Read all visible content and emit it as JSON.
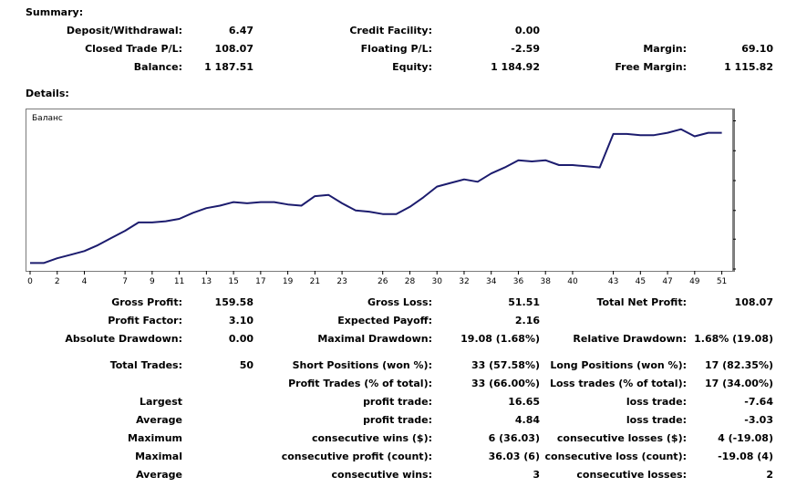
{
  "summary": {
    "heading": "Summary:",
    "deposit_withdrawal": {
      "label": "Deposit/Withdrawal:",
      "value": "6.47"
    },
    "credit_facility": {
      "label": "Credit Facility:",
      "value": "0.00"
    },
    "closed_trade_pl": {
      "label": "Closed Trade P/L:",
      "value": "108.07"
    },
    "floating_pl": {
      "label": "Floating P/L:",
      "value": "-2.59"
    },
    "margin": {
      "label": "Margin:",
      "value": "69.10"
    },
    "balance": {
      "label": "Balance:",
      "value": "1 187.51"
    },
    "equity": {
      "label": "Equity:",
      "value": "1 184.92"
    },
    "free_margin": {
      "label": "Free Margin:",
      "value": "1 115.82"
    }
  },
  "details": {
    "heading": "Details:"
  },
  "chart_data": {
    "type": "line",
    "title": "Баланс",
    "series": [
      {
        "name": "",
        "color": "#1c1c6e",
        "x": [
          0,
          1,
          2,
          3,
          4,
          5,
          6,
          7,
          8,
          9,
          10,
          11,
          12,
          13,
          14,
          15,
          16,
          17,
          18,
          19,
          20,
          21,
          22,
          23,
          24,
          25,
          26,
          27,
          28,
          29,
          30,
          31,
          32,
          33,
          34,
          35,
          36,
          37,
          38,
          39,
          40,
          41,
          42,
          43,
          44,
          45,
          46,
          47,
          48,
          49,
          50,
          51
        ],
        "values": [
          1072,
          1072,
          1076,
          1079,
          1082,
          1087,
          1093,
          1099,
          1106,
          1106,
          1107,
          1109,
          1114,
          1118,
          1120,
          1123,
          1122,
          1123,
          1123,
          1121,
          1120,
          1128,
          1129,
          1122,
          1116,
          1115,
          1113,
          1113,
          1119,
          1127,
          1136,
          1139,
          1142,
          1140,
          1147,
          1152,
          1158,
          1157,
          1158,
          1154,
          1154,
          1153,
          1152,
          1180,
          1180,
          1179,
          1179,
          1181,
          1184,
          1178,
          1181,
          1181
        ]
      }
    ],
    "x_ticks": [
      "0",
      "2",
      "4",
      "7",
      "9",
      "11",
      "13",
      "15",
      "17",
      "19",
      "21",
      "23",
      "26",
      "28",
      "30",
      "32",
      "34",
      "36",
      "38",
      "40",
      "43",
      "45",
      "47",
      "49",
      "51"
    ],
    "y_ticks": [
      "1067",
      "1092",
      "1116",
      "1141",
      "1166",
      "1191"
    ],
    "ylim": [
      1067,
      1199
    ],
    "xlim": [
      0,
      51.5
    ],
    "grid": false,
    "y_axis_position": "right"
  },
  "stats": {
    "gross_profit": {
      "label": "Gross Profit:",
      "value": "159.58"
    },
    "gross_loss": {
      "label": "Gross Loss:",
      "value": "51.51"
    },
    "total_net_profit": {
      "label": "Total Net Profit:",
      "value": "108.07"
    },
    "profit_factor": {
      "label": "Profit Factor:",
      "value": "3.10"
    },
    "expected_payoff": {
      "label": "Expected Payoff:",
      "value": "2.16"
    },
    "absolute_drawdown": {
      "label": "Absolute Drawdown:",
      "value": "0.00"
    },
    "maximal_drawdown": {
      "label": "Maximal Drawdown:",
      "value": "19.08 (1.68%)"
    },
    "relative_drawdown": {
      "label": "Relative Drawdown:",
      "value": "1.68% (19.08)"
    },
    "total_trades": {
      "label": "Total Trades:",
      "value": "50"
    },
    "short_positions": {
      "label": "Short Positions (won %):",
      "value": "33 (57.58%)"
    },
    "long_positions": {
      "label": "Long Positions (won %):",
      "value": "17 (82.35%)"
    },
    "profit_trades": {
      "label": "Profit Trades (% of total):",
      "value": "33 (66.00%)"
    },
    "loss_trades": {
      "label": "Loss trades (% of total):",
      "value": "17 (34.00%)"
    },
    "largest": {
      "label": "Largest",
      "profit_label": "profit trade:",
      "profit_value": "16.65",
      "loss_label": "loss trade:",
      "loss_value": "-7.64"
    },
    "average": {
      "label": "Average",
      "profit_label": "profit trade:",
      "profit_value": "4.84",
      "loss_label": "loss trade:",
      "loss_value": "-3.03"
    },
    "maximum": {
      "label": "Maximum",
      "wins_label": "consecutive wins ($):",
      "wins_value": "6 (36.03)",
      "losses_label": "consecutive losses ($):",
      "losses_value": "4 (-19.08)"
    },
    "maximal": {
      "label": "Maximal",
      "wins_label": "consecutive profit (count):",
      "wins_value": "36.03 (6)",
      "losses_label": "consecutive loss (count):",
      "losses_value": "-19.08 (4)"
    },
    "average_consecutive": {
      "label": "Average",
      "wins_label": "consecutive wins:",
      "wins_value": "3",
      "losses_label": "consecutive losses:",
      "losses_value": "2"
    }
  }
}
